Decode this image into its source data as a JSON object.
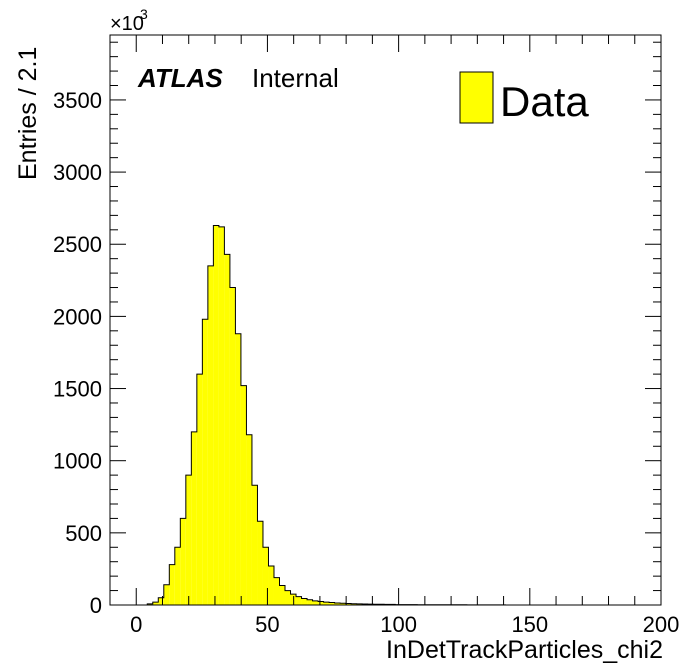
{
  "chart_data": {
    "type": "bar",
    "style": "histogram",
    "xlabel": "InDetTrackParticles_chi2",
    "ylabel": "Entries / 2.1",
    "y_multiplier_label": "×10",
    "y_multiplier_exponent": "3",
    "xlim": [
      -10,
      200
    ],
    "ylim": [
      0,
      3950
    ],
    "bin_width": 2.1,
    "x_ticks": [
      0,
      50,
      100,
      150,
      200
    ],
    "y_ticks": [
      0,
      500,
      1000,
      1500,
      2000,
      2500,
      3000,
      3500
    ],
    "x_tick_labels": [
      "0",
      "50",
      "100",
      "150",
      "200"
    ],
    "y_tick_labels": [
      "0",
      "500",
      "1000",
      "1500",
      "2000",
      "2500",
      "3000",
      "3500"
    ],
    "grid": false,
    "legend": {
      "position": "top-right",
      "entries": [
        {
          "label": "Data",
          "color": "#ffff00"
        }
      ]
    },
    "annotation": {
      "atlas": "ATLAS",
      "status": "Internal"
    },
    "fill_color": "#ffff00",
    "line_color": "#000000",
    "series": [
      {
        "name": "Data",
        "x_start": 4.2,
        "values": [
          8,
          20,
          50,
          140,
          280,
          400,
          600,
          900,
          1200,
          1600,
          1980,
          2350,
          2630,
          2620,
          2430,
          2200,
          1880,
          1520,
          1180,
          830,
          580,
          400,
          270,
          190,
          135,
          100,
          75,
          58,
          45,
          36,
          29,
          24,
          20,
          17,
          14,
          12,
          10,
          9,
          8,
          7,
          6,
          5,
          5,
          4,
          4,
          3,
          3,
          3,
          3,
          2,
          2,
          2,
          2,
          2,
          2,
          2,
          2,
          2,
          1,
          1,
          1,
          1,
          1,
          1,
          1
        ]
      }
    ]
  }
}
